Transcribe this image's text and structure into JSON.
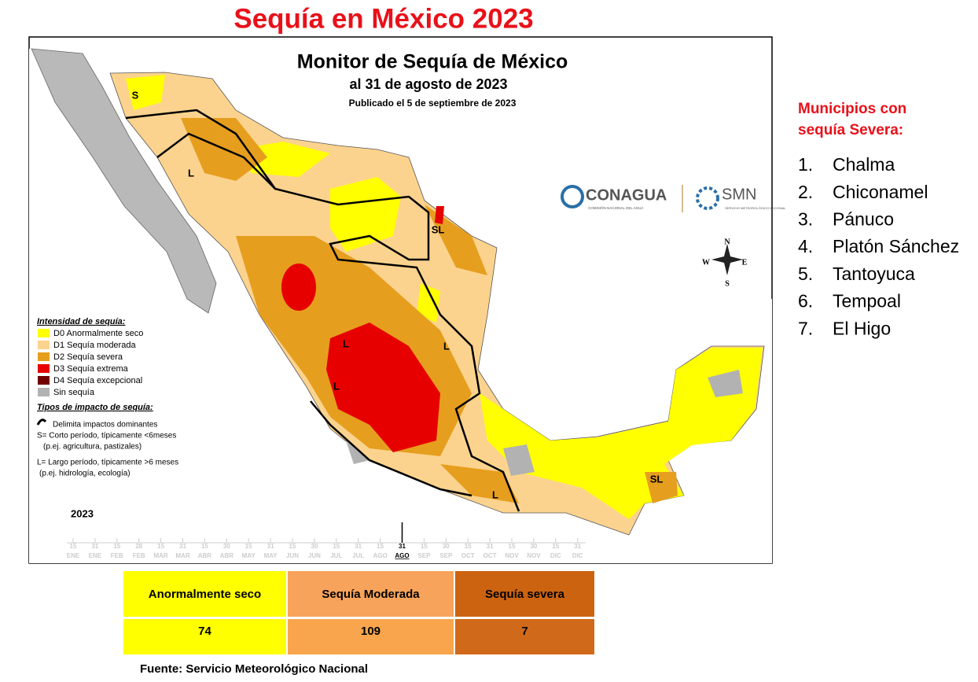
{
  "title": "Sequía en México 2023",
  "map": {
    "title": "Monitor de Sequía de México",
    "subtitle": "al 31 de agosto de 2023",
    "published": "Publicado el 5 de septiembre de 2023",
    "legend": {
      "heading": "Intensidad de sequía:",
      "items": [
        {
          "label": "D0 Anormalmente seco",
          "color": "#ffff00"
        },
        {
          "label": "D1 Sequía moderada",
          "color": "#fcd38e"
        },
        {
          "label": "D2 Sequía severa",
          "color": "#e69e1e"
        },
        {
          "label": "D3 Sequía extrema",
          "color": "#e60000"
        },
        {
          "label": "D4 Sequía excepcional",
          "color": "#730000"
        },
        {
          "label": "Sin sequía",
          "color": "#b2b2b2"
        }
      ]
    },
    "impact": {
      "heading": "Tipos de impacto de sequía:",
      "line": "Delimita impactos dominantes",
      "short": "S= Corto período, típicamente <6meses",
      "short_note": "(p.ej. agricultura, pastizales)",
      "long": "L= Largo período, típicamente >6 meses",
      "long_note": "(p.ej. hidrología, ecología)"
    },
    "labels": [
      "S",
      "L",
      "SL",
      "L",
      "L",
      "L",
      "L",
      "SL"
    ],
    "compass": [
      "N",
      "S",
      "E",
      "W"
    ],
    "logos": {
      "conagua": "CONAGUA",
      "conagua_sub": "COMISIÓN NACIONAL DEL AGUA",
      "smn": "SMN",
      "smn_sub": "SERVICIO METEOROLÓGICO NACIONAL"
    },
    "timeline": {
      "year": "2023",
      "ticks": [
        {
          "day": "15",
          "month": "ENE"
        },
        {
          "day": "31",
          "month": "ENE"
        },
        {
          "day": "15",
          "month": "FEB"
        },
        {
          "day": "28",
          "month": "FEB"
        },
        {
          "day": "15",
          "month": "MAR"
        },
        {
          "day": "31",
          "month": "MAR"
        },
        {
          "day": "15",
          "month": "ABR"
        },
        {
          "day": "30",
          "month": "ABR"
        },
        {
          "day": "15",
          "month": "MAY"
        },
        {
          "day": "31",
          "month": "MAY"
        },
        {
          "day": "15",
          "month": "JUN"
        },
        {
          "day": "30",
          "month": "JUN"
        },
        {
          "day": "15",
          "month": "JUL"
        },
        {
          "day": "31",
          "month": "JUL"
        },
        {
          "day": "15",
          "month": "AGO"
        },
        {
          "day": "31",
          "month": "AGO",
          "current": true
        },
        {
          "day": "15",
          "month": "SEP"
        },
        {
          "day": "30",
          "month": "SEP"
        },
        {
          "day": "15",
          "month": "OCT"
        },
        {
          "day": "31",
          "month": "OCT"
        },
        {
          "day": "15",
          "month": "NOV"
        },
        {
          "day": "30",
          "month": "NOV"
        },
        {
          "day": "15",
          "month": "DIC"
        },
        {
          "day": "31",
          "month": "DIC"
        }
      ]
    }
  },
  "sidebar": {
    "heading": [
      "Municipios con",
      "sequía Severa:"
    ],
    "items": [
      "Chalma",
      "Chiconamel",
      "Pánuco",
      "Platón Sánchez",
      "Tantoyuca",
      "Tempoal",
      "El Higo"
    ]
  },
  "table": {
    "headers": [
      "Anormalmente seco",
      "Sequía Moderada",
      "Sequía severa"
    ],
    "values": [
      74,
      109,
      7
    ],
    "header_colors": [
      "#ffff00",
      "#f8a35b",
      "#cc6311"
    ],
    "value_colors": [
      "#ffff00",
      "#f9a54e",
      "#d06a1a"
    ]
  },
  "source": "Fuente: Servicio Meteorológico Nacional"
}
